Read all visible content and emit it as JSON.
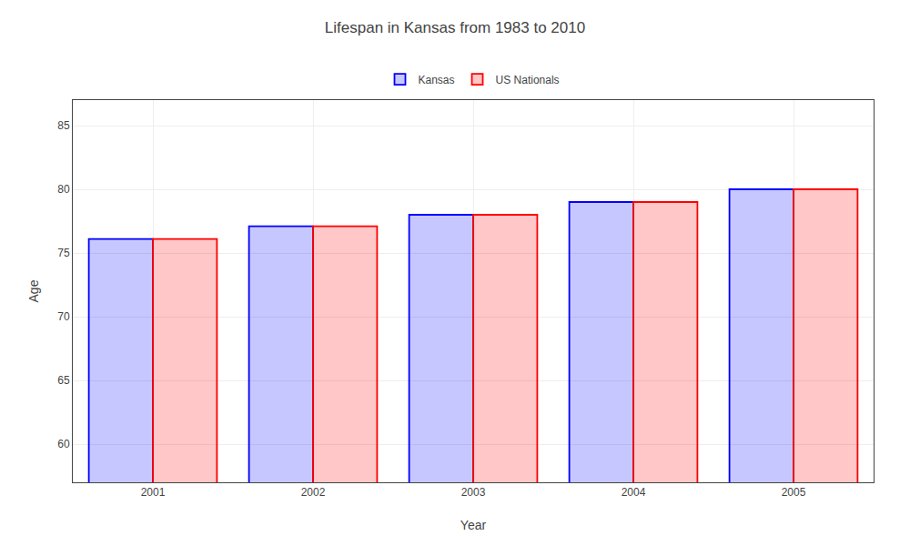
{
  "chart_data": {
    "type": "bar",
    "title": "Lifespan in Kansas from 1983 to 2010",
    "xlabel": "Year",
    "ylabel": "Age",
    "categories": [
      "2001",
      "2002",
      "2003",
      "2004",
      "2005"
    ],
    "series": [
      {
        "name": "Kansas",
        "color": "#0000ff",
        "values": [
          76.1,
          77.1,
          78.0,
          79.0,
          80.0
        ]
      },
      {
        "name": "US Nationals",
        "color": "#ff0000",
        "values": [
          76.1,
          77.1,
          78.0,
          79.0,
          80.0
        ]
      }
    ],
    "ylim": [
      57,
      87
    ],
    "yticks": [
      60,
      65,
      70,
      75,
      80,
      85
    ],
    "grid": true,
    "legend": "top"
  }
}
